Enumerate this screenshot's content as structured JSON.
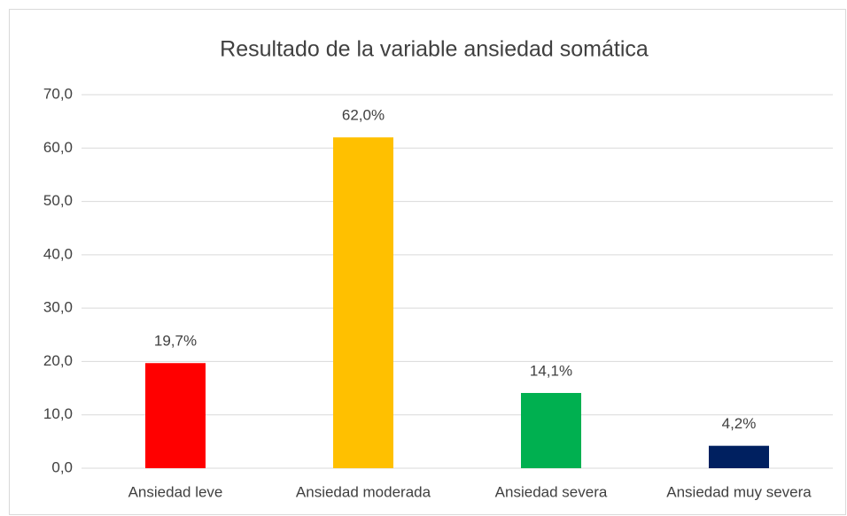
{
  "chart_data": {
    "type": "bar",
    "title": "Resultado de la variable ansiedad somática",
    "categories": [
      "Ansiedad leve",
      "Ansiedad moderada",
      "Ansiedad severa",
      "Ansiedad muy severa"
    ],
    "values": [
      19.7,
      62.0,
      14.1,
      4.2
    ],
    "value_labels": [
      "19,7%",
      "62,0%",
      "14,1%",
      "4,2%"
    ],
    "colors": [
      "#ff0000",
      "#ffc000",
      "#00b050",
      "#002060"
    ],
    "ylim": [
      0,
      70
    ],
    "yticks": [
      {
        "value": 0,
        "label": "0,0"
      },
      {
        "value": 10,
        "label": "10,0"
      },
      {
        "value": 20,
        "label": "20,0"
      },
      {
        "value": 30,
        "label": "30,0"
      },
      {
        "value": 40,
        "label": "40,0"
      },
      {
        "value": 50,
        "label": "50,0"
      },
      {
        "value": 60,
        "label": "60,0"
      },
      {
        "value": 70,
        "label": "70,0"
      }
    ],
    "grid": true
  }
}
